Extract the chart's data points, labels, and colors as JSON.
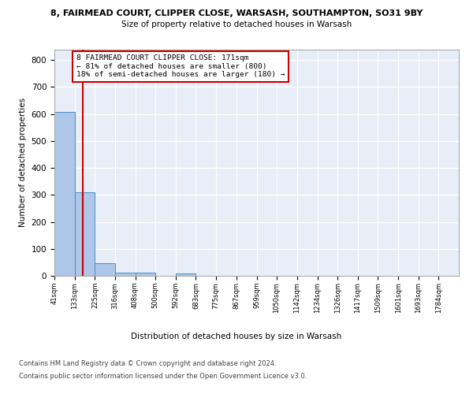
{
  "title": "8, FAIRMEAD COURT, CLIPPER CLOSE, WARSASH, SOUTHAMPTON, SO31 9BY",
  "subtitle": "Size of property relative to detached houses in Warsash",
  "xlabel": "Distribution of detached houses by size in Warsash",
  "ylabel": "Number of detached properties",
  "bar_color": "#aec6e8",
  "bar_edge_color": "#4a90c4",
  "background_color": "#e8eef7",
  "grid_color": "#ffffff",
  "red_line_color": "#cc0000",
  "annotation_box_color": "#cc0000",
  "bin_edges": [
    41,
    133,
    225,
    316,
    408,
    500,
    592,
    683,
    775,
    867,
    959,
    1050,
    1142,
    1234,
    1326,
    1417,
    1509,
    1601,
    1693,
    1784,
    1876
  ],
  "bin_counts": [
    608,
    310,
    48,
    12,
    13,
    0,
    8,
    0,
    0,
    0,
    0,
    0,
    0,
    0,
    0,
    0,
    0,
    0,
    0,
    0
  ],
  "red_line_x": 171,
  "annotation_text_line1": "8 FAIRMEAD COURT CLIPPER CLOSE: 171sqm",
  "annotation_text_line2": "← 81% of detached houses are smaller (800)",
  "annotation_text_line3": "18% of semi-detached houses are larger (180) →",
  "ylim": [
    0,
    840
  ],
  "yticks": [
    0,
    100,
    200,
    300,
    400,
    500,
    600,
    700,
    800
  ],
  "footer_line1": "Contains HM Land Registry data © Crown copyright and database right 2024.",
  "footer_line2": "Contains public sector information licensed under the Open Government Licence v3.0."
}
